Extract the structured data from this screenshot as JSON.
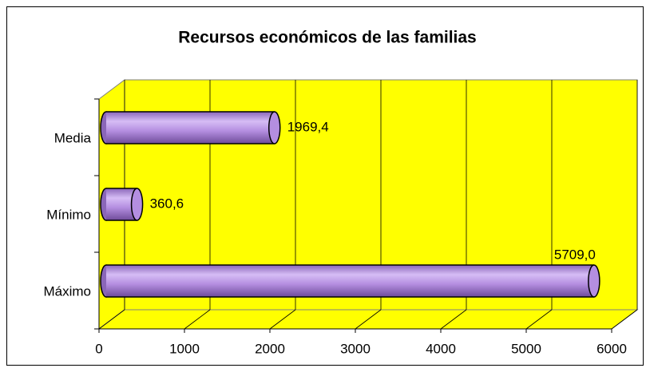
{
  "chart_data": {
    "type": "bar",
    "orientation": "horizontal",
    "style": "3d-cylinder",
    "title": "Recursos económicos de las familias",
    "categories": [
      "Media",
      "Mínimo",
      "Máximo"
    ],
    "values": [
      1969.4,
      360.6,
      5709.0
    ],
    "value_labels": [
      "1969,4",
      "360,6",
      "5709,0"
    ],
    "color": "#b48ee0",
    "background": "#ffff00",
    "xlim": [
      0,
      6000
    ],
    "xticks": [
      0,
      1000,
      2000,
      3000,
      4000,
      5000,
      6000
    ],
    "grid": true
  }
}
